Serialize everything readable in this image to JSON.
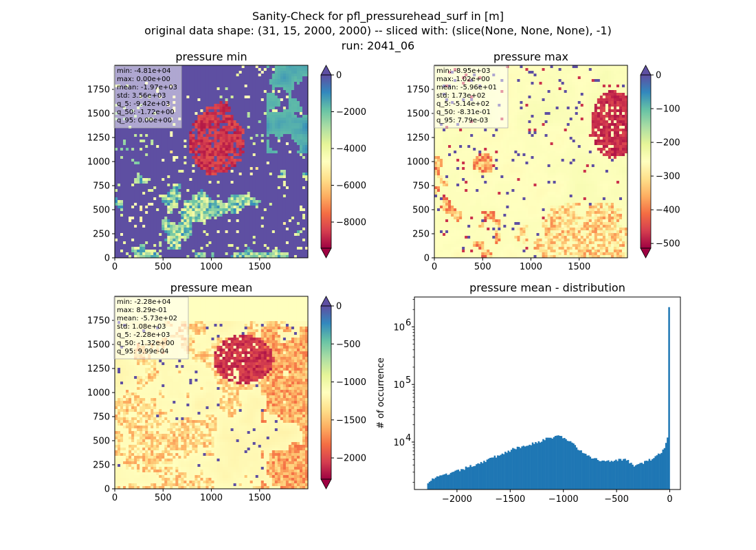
{
  "figure": {
    "suptitle_lines": [
      "Sanity-Check for pfl_pressurehead_surf in [m]",
      "original data shape: (31, 15, 2000, 2000) -- sliced with: (slice(None, None, None), -1)",
      "run: 2041_06"
    ]
  },
  "colors": {
    "spectral": [
      "#9e0142",
      "#d53e4f",
      "#f46d43",
      "#fdae61",
      "#fee08b",
      "#ffffbf",
      "#e6f598",
      "#abdda4",
      "#66c2a5",
      "#3288bd",
      "#5e4fa2"
    ],
    "hist_bar": "#1f77b4"
  },
  "chart_data": [
    {
      "type": "heatmap",
      "title": "pressure min",
      "xticks": [
        0,
        500,
        1000,
        1500
      ],
      "yticks": [
        0,
        250,
        500,
        750,
        1000,
        1250,
        1500,
        1750
      ],
      "xlim": [
        0,
        2000
      ],
      "ylim": [
        0,
        2000
      ],
      "colorbar": {
        "vmin": -9420,
        "vmax": 0,
        "ticks": [
          0,
          -2000,
          -4000,
          -6000,
          -8000
        ],
        "extend": "both"
      },
      "stats": [
        "min: -4.81e+04",
        "max: 0.00e+00",
        "mean: -1.97e+03",
        "std: 3.56e+03",
        "q_5: -9.42e+03",
        "q_50: -1.72e+00",
        "q_95: 0.00e+00"
      ]
    },
    {
      "type": "heatmap",
      "title": "pressure max",
      "xticks": [
        0,
        500,
        1000,
        1500
      ],
      "yticks": [
        0,
        250,
        500,
        750,
        1000,
        1250,
        1500,
        1750
      ],
      "xlim": [
        0,
        2000
      ],
      "ylim": [
        0,
        2000
      ],
      "colorbar": {
        "vmin": -514,
        "vmax": 0,
        "ticks": [
          0,
          -100,
          -200,
          -300,
          -400,
          -500
        ],
        "extend": "both"
      },
      "stats": [
        "min: -8.95e+03",
        "max: 1.02e+00",
        "mean: -5.96e+01",
        "std: 1.73e+02",
        "q_5: -5.14e+02",
        "q_50: -8.31e-01",
        "q_95: 7.79e-03"
      ]
    },
    {
      "type": "heatmap",
      "title": "pressure mean",
      "xticks": [
        0,
        500,
        1000,
        1500
      ],
      "yticks": [
        0,
        250,
        500,
        750,
        1000,
        1250,
        1500,
        1750
      ],
      "xlim": [
        0,
        2000
      ],
      "ylim": [
        0,
        2000
      ],
      "colorbar": {
        "vmin": -2280,
        "vmax": 0,
        "ticks": [
          0,
          -500,
          -1000,
          -1500,
          -2000
        ],
        "extend": "both"
      },
      "stats": [
        "min: -2.28e+04",
        "max: 8.29e-01",
        "mean: -5.73e+02",
        "std: 1.08e+03",
        "q_5: -2.28e+03",
        "q_50: -1.32e+00",
        "q_95: 9.99e-04"
      ]
    },
    {
      "type": "bar",
      "title": "pressure mean - distribution",
      "ylabel": "# of occurrence",
      "yscale": "log",
      "xlim": [
        -2400,
        100
      ],
      "ylim": [
        1500,
        3300000
      ],
      "xticks": [
        -2000,
        -1500,
        -1000,
        -500,
        0
      ],
      "xtick_labels": [
        "−2000",
        "−1500",
        "−1000",
        "−500",
        "0"
      ],
      "yticks": [
        10000,
        100000,
        1000000
      ],
      "ytick_labels": [
        "10",
        "10",
        "10"
      ],
      "ytick_exponents": [
        "4",
        "5",
        "6"
      ],
      "bin_edges_range": [
        -2280,
        0
      ],
      "bin_count": 160,
      "profile": {
        "x": [
          -2280,
          -2230,
          -2000,
          -1700,
          -1500,
          -1250,
          -1050,
          -1000,
          -900,
          -800,
          -650,
          -550,
          -500,
          -400,
          -320,
          -250,
          -150,
          -80,
          -40,
          -20,
          -10,
          -5,
          0
        ],
        "y": [
          2000,
          2300,
          3100,
          5000,
          7200,
          10000,
          13000,
          12000,
          9000,
          6000,
          4700,
          4800,
          5000,
          4800,
          3800,
          4400,
          5200,
          6500,
          9000,
          13000,
          17000,
          22000,
          2200000
        ]
      }
    }
  ]
}
